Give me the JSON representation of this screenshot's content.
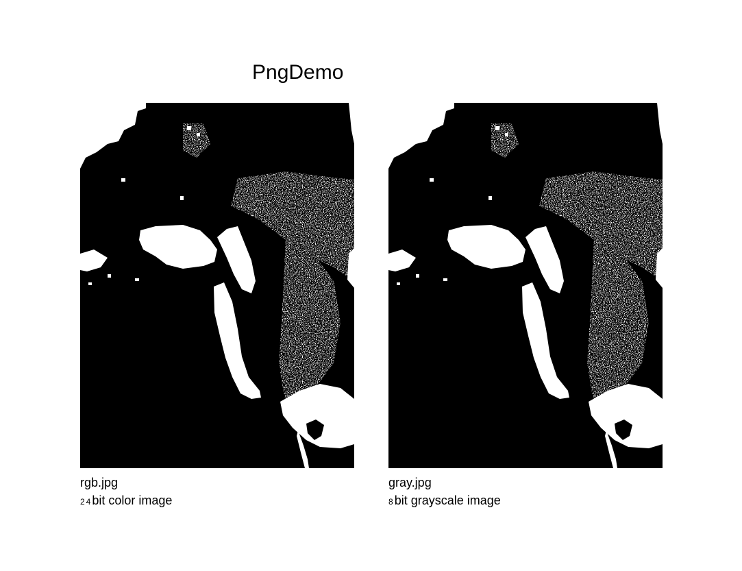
{
  "title": "PngDemo",
  "colors": {
    "background": "#ffffff",
    "ink": "#000000"
  },
  "panels": [
    {
      "image_description": "thresholded black and white photo of a dog's head",
      "filename": "rgb.jpg",
      "bit_prefix": "24",
      "description_rest": "bit color image"
    },
    {
      "image_description": "thresholded black and white photo of a dog's head",
      "filename": "gray.jpg",
      "bit_prefix": "8",
      "description_rest": "bit grayscale image"
    }
  ]
}
